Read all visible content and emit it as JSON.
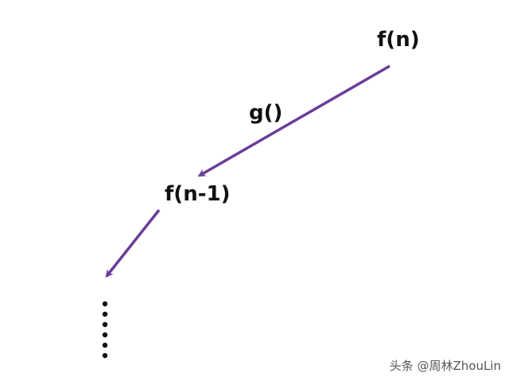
{
  "nodes": {
    "top": "f(n)",
    "second": "f(n-1)"
  },
  "edge_label": "g()",
  "watermark": "头条 @周林ZhouLin",
  "colors": {
    "arrow": "#6a3d9a",
    "text": "#111111",
    "dots": "#111111"
  }
}
